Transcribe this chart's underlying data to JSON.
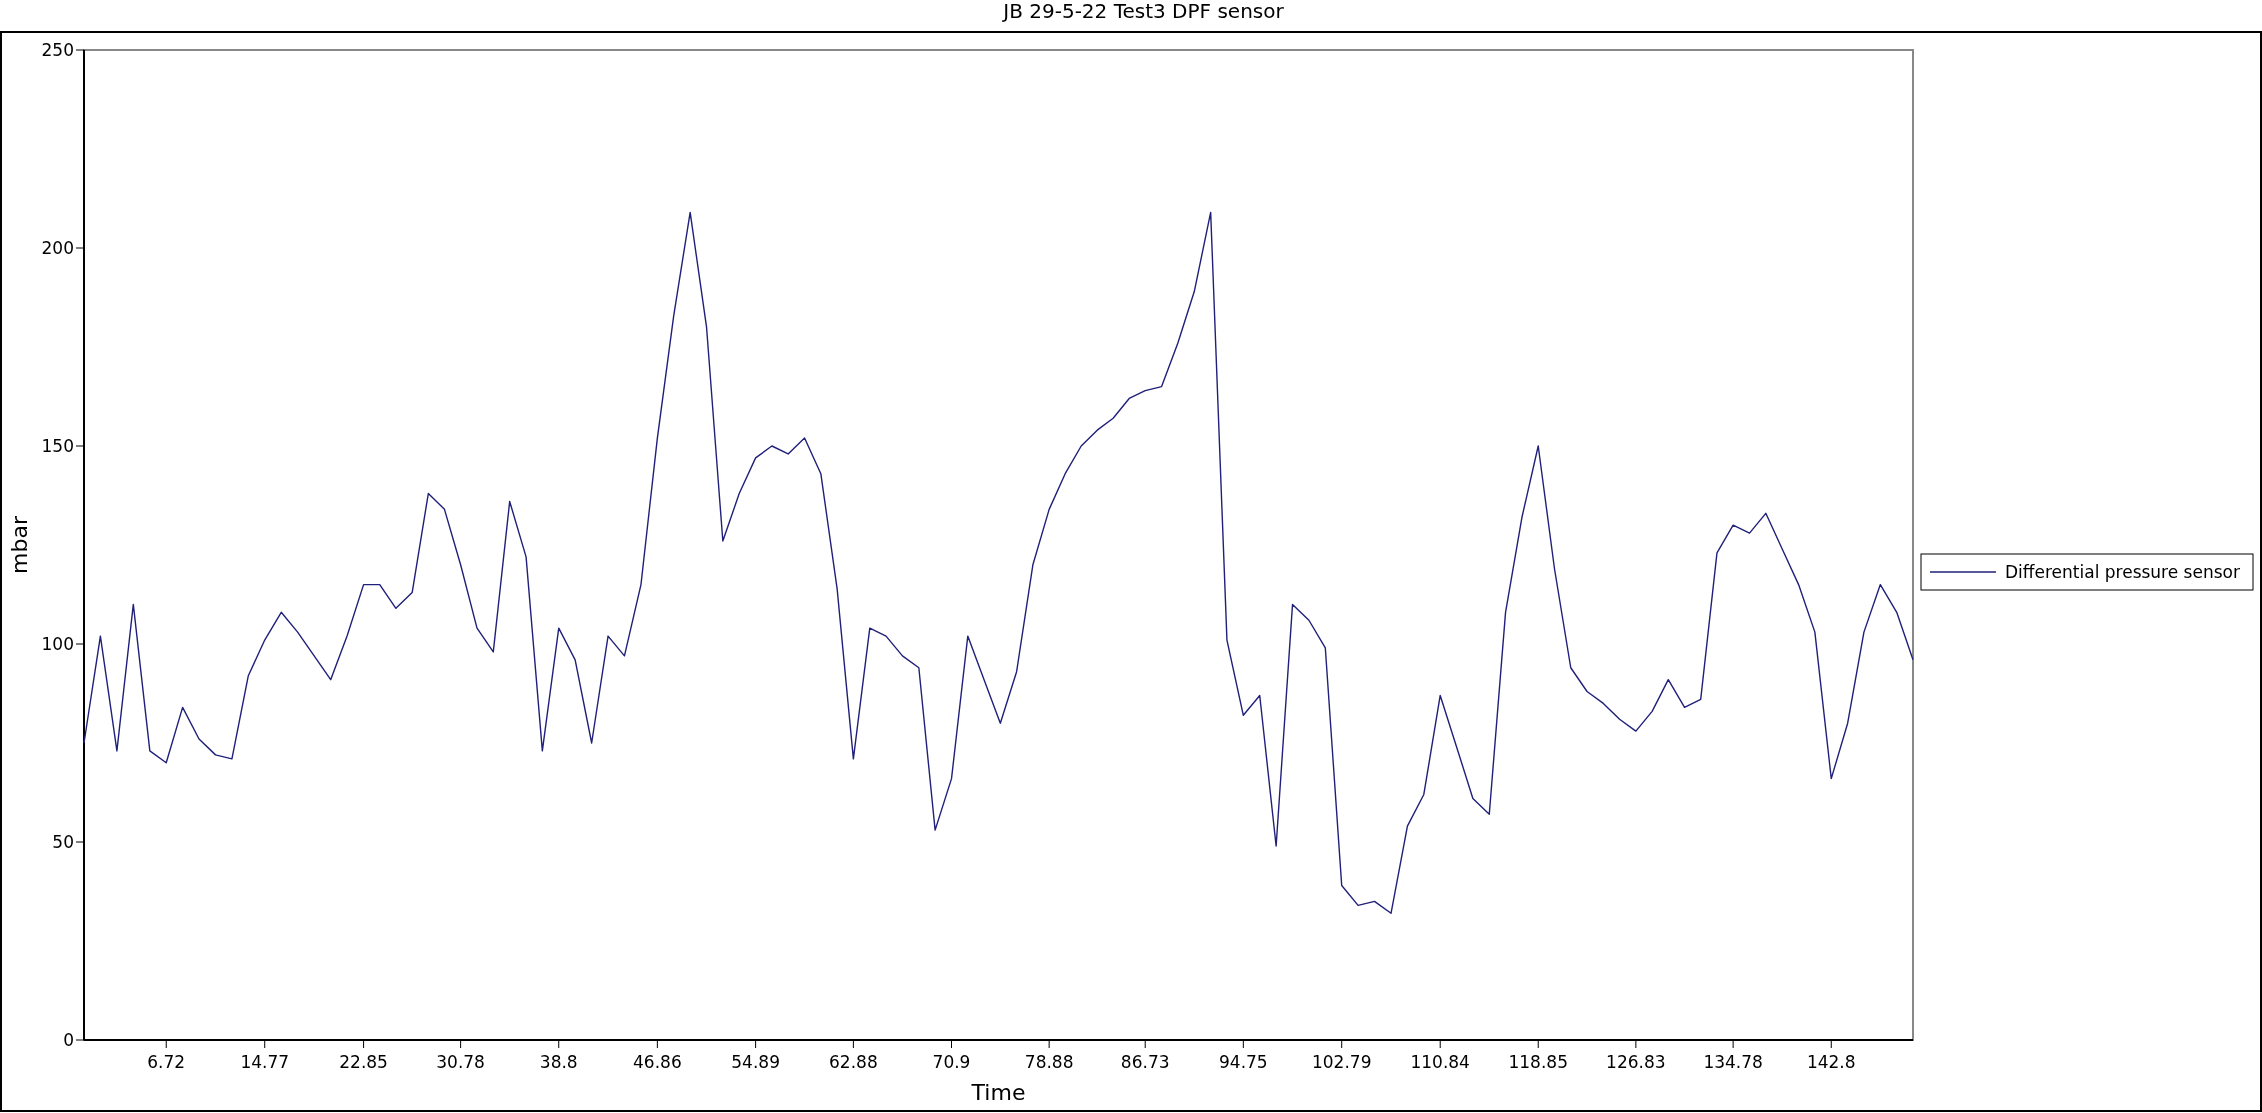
{
  "chart_data": {
    "type": "line",
    "title": "JB 29-5-22 Test3 DPF sensor",
    "xlabel": "Time",
    "ylabel": "mbar",
    "x": [
      0,
      1.34,
      2.69,
      4.03,
      5.38,
      6.72,
      8.06,
      9.4,
      10.75,
      12.09,
      13.43,
      14.77,
      16.12,
      17.46,
      18.81,
      20.16,
      21.5,
      22.85,
      24.17,
      25.49,
      26.82,
      28.14,
      29.46,
      30.78,
      32.12,
      33.45,
      34.79,
      36.13,
      37.46,
      38.8,
      40.14,
      41.49,
      42.83,
      44.17,
      45.52,
      46.86,
      48.2,
      49.54,
      50.88,
      52.21,
      53.55,
      54.89,
      56.22,
      57.55,
      58.89,
      60.22,
      61.55,
      62.88,
      64.22,
      65.55,
      66.89,
      68.23,
      69.56,
      70.9,
      72.23,
      73.56,
      74.89,
      76.22,
      77.55,
      78.88,
      80.19,
      81.5,
      82.81,
      84.11,
      85.42,
      86.73,
      88.07,
      89.4,
      90.74,
      92.08,
      93.41,
      94.75,
      96.09,
      97.43,
      98.77,
      100.11,
      101.45,
      102.79,
      104.13,
      105.47,
      106.82,
      108.16,
      109.5,
      110.84,
      112.18,
      113.51,
      114.85,
      116.18,
      117.52,
      118.85,
      120.18,
      121.51,
      122.84,
      124.17,
      125.5,
      126.83,
      128.16,
      129.48,
      130.81,
      132.13,
      133.46,
      134.78,
      136.12,
      137.45,
      138.79,
      140.13,
      141.46,
      142.8,
      144.14,
      145.47,
      146.81,
      148.15,
      149.48
    ],
    "series": [
      {
        "name": "Differential pressure sensor",
        "color": "#20207a",
        "values": [
          75,
          102,
          73,
          110,
          73,
          70,
          84,
          76,
          72,
          71,
          92,
          101,
          108,
          103,
          97,
          91,
          102,
          115,
          115,
          109,
          113,
          138,
          134,
          120,
          104,
          98,
          136,
          122,
          73,
          104,
          96,
          75,
          102,
          97,
          115,
          152,
          183,
          209,
          180,
          126,
          138,
          147,
          150,
          148,
          152,
          143,
          114,
          71,
          104,
          102,
          97,
          94,
          53,
          66,
          102,
          91,
          80,
          93,
          120,
          134,
          143,
          150,
          154,
          157,
          162,
          164,
          165,
          176,
          189,
          209,
          101,
          82,
          87,
          49,
          110,
          106,
          99,
          39,
          34,
          35,
          32,
          54,
          62,
          87,
          74,
          61,
          57,
          108,
          132,
          150,
          119,
          94,
          88,
          85,
          81,
          78,
          83,
          91,
          84,
          86,
          123,
          130,
          128,
          133,
          124,
          115,
          103,
          66,
          80,
          103,
          115,
          108,
          96
        ]
      }
    ],
    "xlim": [
      0,
      149.48
    ],
    "xticks": [
      6.72,
      14.77,
      22.85,
      30.78,
      38.8,
      46.86,
      54.89,
      62.88,
      70.9,
      78.88,
      86.73,
      94.75,
      102.79,
      110.84,
      118.85,
      126.83,
      134.78,
      142.8
    ],
    "ylim": [
      0,
      250
    ],
    "yticks": [
      0,
      50,
      100,
      150,
      200,
      250
    ],
    "grid": false,
    "legend": "right",
    "marker": "none",
    "line_style": "solid"
  }
}
